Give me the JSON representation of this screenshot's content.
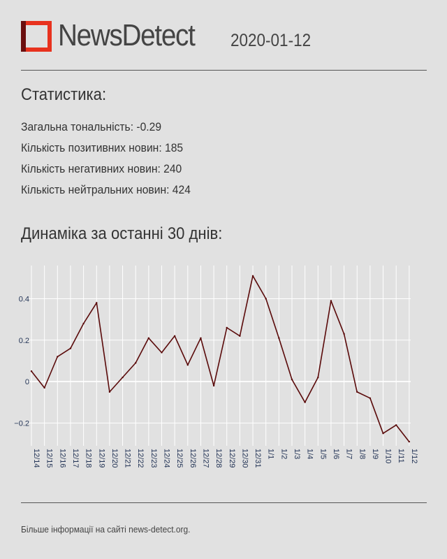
{
  "header": {
    "brand": "NewsDetect",
    "date": "2020-01-12",
    "logo_colors": {
      "dark": "#6b0f0f",
      "red": "#e8321e"
    }
  },
  "stats": {
    "title": "Статистика:",
    "tone": "Загальна тональність: -0.29",
    "positive": "Кількість позитивних новин: 185",
    "negative": "Кількість негативних новин: 240",
    "neutral": "Кількість нейтральних новин: 424"
  },
  "chart_title": "Динаміка за останні 30 днів:",
  "footer": "Більше інформації на сайті news-detect.org.",
  "chart_data": {
    "type": "line",
    "x": [
      "12/14",
      "12/15",
      "12/16",
      "12/17",
      "12/18",
      "12/19",
      "12/20",
      "12/21",
      "12/22",
      "12/23",
      "12/24",
      "12/25",
      "12/26",
      "12/27",
      "12/28",
      "12/29",
      "12/30",
      "12/31",
      "1/1",
      "1/2",
      "1/3",
      "1/4",
      "1/5",
      "1/6",
      "1/7",
      "1/8",
      "1/9",
      "1/10",
      "1/11",
      "1/12"
    ],
    "values": [
      0.05,
      -0.03,
      0.12,
      0.16,
      0.28,
      0.38,
      -0.05,
      0.02,
      0.09,
      0.21,
      0.14,
      0.22,
      0.08,
      0.21,
      -0.02,
      0.26,
      0.22,
      0.51,
      0.4,
      0.21,
      0.01,
      -0.1,
      0.02,
      0.39,
      0.23,
      -0.05,
      -0.08,
      -0.25,
      -0.21,
      -0.29
    ],
    "yticks": [
      -0.2,
      0,
      0.2,
      0.4
    ],
    "ytick_labels": [
      "−0.2",
      "0",
      "0.2",
      "0.4"
    ],
    "ylim": [
      -0.31,
      0.56
    ],
    "line_color": "#5a0a0a",
    "grid": true,
    "legend": false
  }
}
